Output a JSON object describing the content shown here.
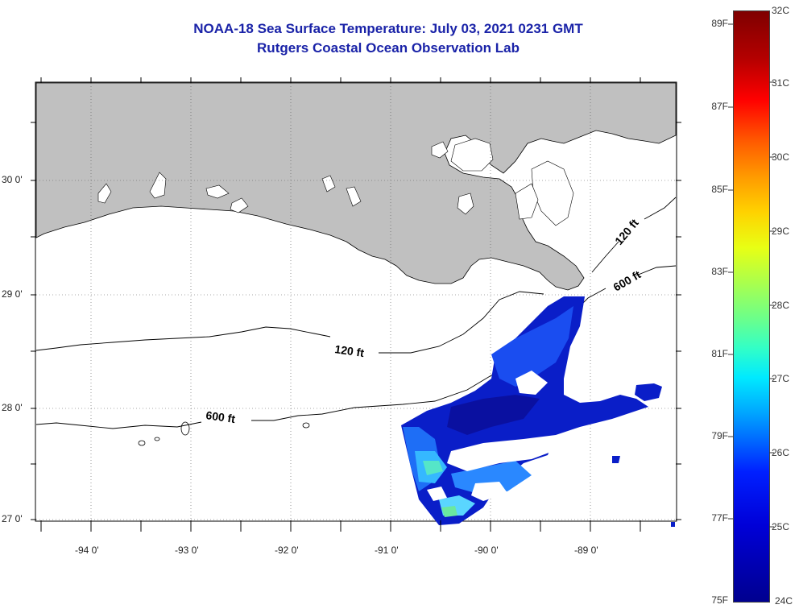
{
  "title": {
    "line1": "NOAA-18 Sea Surface Temperature:  July 03, 2021 0231 GMT",
    "line2": "Rutgers Coastal Ocean Observation Lab"
  },
  "map": {
    "lon_labels": [
      "-94 0'",
      "-93 0'",
      "-92 0'",
      "-91 0'",
      "-90 0'",
      "-89 0'"
    ],
    "lat_labels": [
      "30 0'",
      "29 0'",
      "28 0'",
      "27 0'"
    ],
    "contour_labels": [
      "120 ft",
      "600 ft",
      "120 ft",
      "600 ft"
    ],
    "land_color": "#c0c0c0"
  },
  "colorbar": {
    "fahrenheit": [
      "89F",
      "87F",
      "85F",
      "83F",
      "81F",
      "79F",
      "77F",
      "75F"
    ],
    "celsius": [
      "32C",
      "31C",
      "30C",
      "29C",
      "28C",
      "27C",
      "26C",
      "25C",
      "24C"
    ]
  }
}
